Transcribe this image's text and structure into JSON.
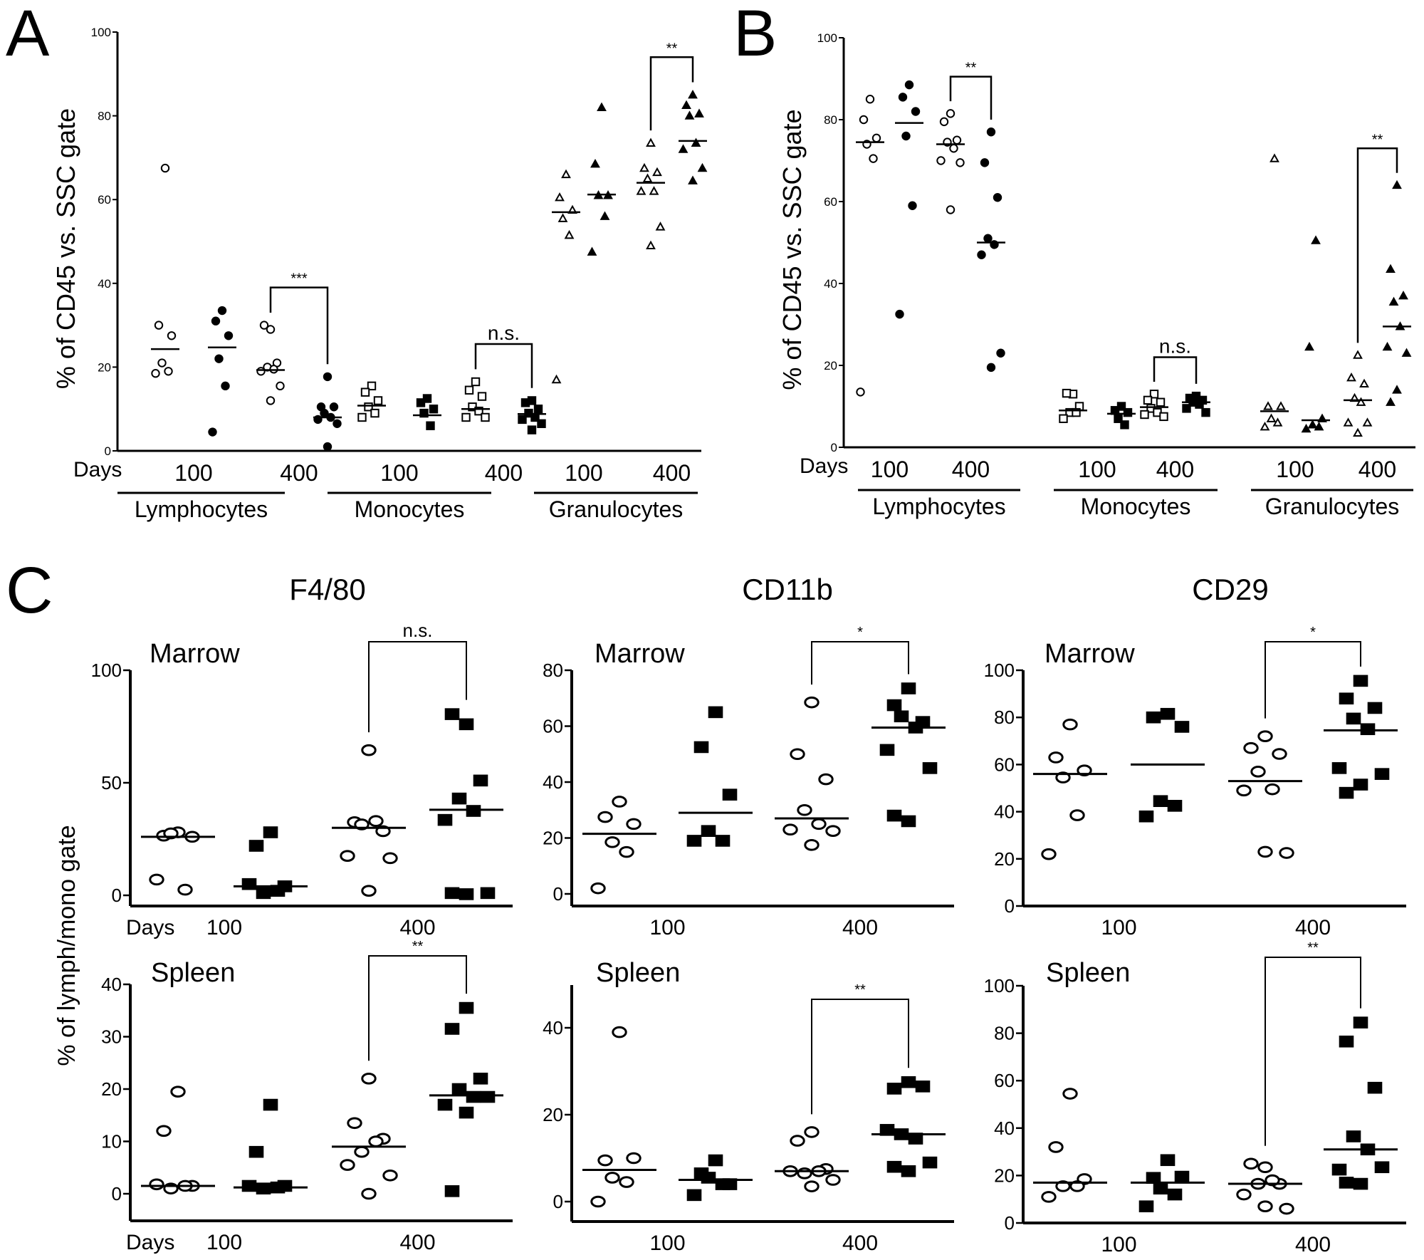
{
  "figure": {
    "panel_labels": [
      "A",
      "B",
      "C"
    ],
    "days_label": "Days"
  },
  "chart_data": [
    {
      "id": "A",
      "type": "scatter",
      "title": "",
      "ylabel": "% of CD45 vs. SSC gate",
      "ylim": [
        0,
        100
      ],
      "yticks": [
        0,
        20,
        40,
        60,
        80,
        100
      ],
      "groups": [
        "Lymphocytes",
        "Monocytes",
        "Granulocytes"
      ],
      "tick_labels": [
        "100",
        "400",
        "100",
        "400",
        "100",
        "400"
      ],
      "series": [
        {
          "group": "Lymphocytes",
          "day": "100",
          "marker": "circle-open",
          "median": 24.3,
          "values": [
            67.5,
            30,
            27.5,
            21,
            19,
            18.5
          ]
        },
        {
          "group": "Lymphocytes",
          "day": "400",
          "marker": "circle-filled",
          "median": 24.7,
          "values": [
            33.5,
            31,
            27.5,
            22,
            15.5,
            4.5
          ]
        },
        {
          "group": "Lymphocytes",
          "day": "100b",
          "marker": "circle-open",
          "median": 19.3,
          "values": [
            29,
            30,
            21,
            20,
            19.5,
            19,
            15.5,
            12
          ]
        },
        {
          "group": "Lymphocytes",
          "day": "400b",
          "marker": "circle-filled",
          "median": 8,
          "values": [
            17.7,
            10.5,
            10.5,
            9,
            8,
            7.5,
            6.5,
            1
          ]
        },
        {
          "group": "Monocytes",
          "day": "100",
          "marker": "square-open",
          "median": 10.8,
          "values": [
            15.5,
            14,
            12,
            10.5,
            9,
            8
          ]
        },
        {
          "group": "Monocytes",
          "day": "400",
          "marker": "square-filled",
          "median": 8.5,
          "values": [
            12.5,
            11.5,
            10,
            9,
            6
          ]
        },
        {
          "group": "Monocytes",
          "day": "100b",
          "marker": "square-open",
          "median": 10,
          "values": [
            16.5,
            14.5,
            13,
            10.5,
            9.5,
            8,
            8
          ]
        },
        {
          "group": "Monocytes",
          "day": "400b",
          "marker": "square-filled",
          "median": 8.8,
          "values": [
            12,
            11.5,
            10,
            9,
            8,
            7.5,
            6.5,
            5
          ]
        },
        {
          "group": "Granulocytes",
          "day": "100",
          "marker": "triangle-open",
          "median": 57,
          "values": [
            66,
            60.5,
            57.5,
            55.5,
            51.5,
            17
          ]
        },
        {
          "group": "Granulocytes",
          "day": "400",
          "marker": "triangle-filled",
          "median": 61.2,
          "values": [
            82,
            68.5,
            61,
            61,
            56,
            47.5
          ]
        },
        {
          "group": "Granulocytes",
          "day": "100b",
          "marker": "triangle-open",
          "median": 64,
          "values": [
            73.5,
            67.5,
            66.5,
            65,
            62,
            62,
            53.5,
            49
          ]
        },
        {
          "group": "Granulocytes",
          "day": "400b",
          "marker": "triangle-filled",
          "median": 74,
          "values": [
            85,
            82.5,
            80.5,
            80,
            73.5,
            72,
            67.5,
            64.5
          ]
        }
      ],
      "comparisons": [
        {
          "between": [
            2,
            3
          ],
          "label": "***"
        },
        {
          "between": [
            6,
            7
          ],
          "label": "n.s."
        },
        {
          "between": [
            10,
            11
          ],
          "label": "**"
        }
      ]
    },
    {
      "id": "B",
      "type": "scatter",
      "title": "",
      "ylabel": "% of CD45 vs. SSC gate",
      "ylim": [
        0,
        100
      ],
      "yticks": [
        0,
        20,
        40,
        60,
        80,
        100
      ],
      "groups": [
        "Lymphocytes",
        "Monocytes",
        "Granulocytes"
      ],
      "tick_labels": [
        "100",
        "400",
        "100",
        "400",
        "100",
        "400"
      ],
      "series": [
        {
          "group": "Lymphocytes",
          "day": "100",
          "marker": "circle-open",
          "median": 74.5,
          "values": [
            85,
            80,
            75.5,
            74,
            70.5,
            13.5
          ]
        },
        {
          "group": "Lymphocytes",
          "day": "400",
          "marker": "circle-filled",
          "median": 79.2,
          "values": [
            88.5,
            85.5,
            82,
            76,
            59,
            32.5
          ]
        },
        {
          "group": "Lymphocytes",
          "day": "100b",
          "marker": "circle-open",
          "median": 74,
          "values": [
            81.5,
            79.5,
            75,
            74.5,
            73,
            70,
            69.5,
            58
          ]
        },
        {
          "group": "Lymphocytes",
          "day": "400b",
          "marker": "circle-filled",
          "median": 50,
          "values": [
            77,
            69.5,
            61,
            51,
            49.5,
            47,
            23,
            19.5
          ]
        },
        {
          "group": "Monocytes",
          "day": "100",
          "marker": "square-open",
          "median": 9,
          "values": [
            13,
            13.2,
            10,
            8.5,
            8.5,
            7
          ]
        },
        {
          "group": "Monocytes",
          "day": "400",
          "marker": "square-filled",
          "median": 8.2,
          "values": [
            10,
            9,
            8.5,
            7,
            5.5
          ]
        },
        {
          "group": "Monocytes",
          "day": "100b",
          "marker": "square-open",
          "median": 9.8,
          "values": [
            13,
            11.5,
            11,
            9.5,
            8.5,
            8,
            7.5
          ]
        },
        {
          "group": "Monocytes",
          "day": "400b",
          "marker": "square-filled",
          "median": 11,
          "values": [
            12.5,
            12,
            11.5,
            11,
            10.5,
            9.5,
            8.5
          ]
        },
        {
          "group": "Granulocytes",
          "day": "100",
          "marker": "triangle-open",
          "median": 8.8,
          "values": [
            70.5,
            10,
            10,
            7,
            6,
            5
          ]
        },
        {
          "group": "Granulocytes",
          "day": "400",
          "marker": "triangle-filled",
          "median": 6.6,
          "values": [
            50.5,
            24.5,
            7,
            5.5,
            5,
            4.5
          ]
        },
        {
          "group": "Granulocytes",
          "day": "100b",
          "marker": "triangle-open",
          "median": 11.5,
          "values": [
            22.5,
            17,
            15.5,
            12,
            11,
            6,
            6,
            3.5
          ]
        },
        {
          "group": "Granulocytes",
          "day": "400b",
          "marker": "triangle-filled",
          "median": 29.5,
          "values": [
            64,
            43.5,
            37,
            35.5,
            29.5,
            24.5,
            23,
            14,
            11
          ]
        }
      ],
      "comparisons": [
        {
          "between": [
            2,
            3
          ],
          "label": "**"
        },
        {
          "between": [
            6,
            7
          ],
          "label": "n.s."
        },
        {
          "between": [
            10,
            11
          ],
          "label": "**"
        }
      ]
    },
    {
      "id": "C-F4/80-Marrow",
      "type": "scatter",
      "title": "F4/80",
      "subtitle": "Marrow",
      "ylabel": "% of lymph/mono gate",
      "ylim": [
        0,
        100
      ],
      "yticks": [
        0,
        50,
        100
      ],
      "xticks": [
        "100",
        "400"
      ],
      "series": [
        {
          "day": "100",
          "marker": "circle-open",
          "median": 26,
          "values": [
            28,
            26.5,
            26,
            27.5,
            2.5,
            7
          ]
        },
        {
          "day": "100",
          "marker": "square-filled",
          "median": 4,
          "values": [
            28,
            22,
            4,
            1,
            2,
            5
          ]
        },
        {
          "day": "400",
          "marker": "circle-open",
          "median": 30,
          "values": [
            64.5,
            32.5,
            28.5,
            31.5,
            33,
            17.5,
            16.5,
            2
          ]
        },
        {
          "day": "400",
          "marker": "square-filled",
          "median": 38,
          "values": [
            76,
            80.5,
            51,
            43,
            37.5,
            33.5,
            1,
            0.5,
            1
          ]
        }
      ],
      "comparisons": [
        {
          "between": [
            2,
            3
          ],
          "label": "n.s."
        }
      ]
    },
    {
      "id": "C-F4/80-Spleen",
      "type": "scatter",
      "subtitle": "Spleen",
      "ylim": [
        -5,
        40
      ],
      "yticks": [
        0,
        10,
        20,
        30,
        40
      ],
      "xticks": [
        "100",
        "400"
      ],
      "series": [
        {
          "day": "100",
          "marker": "circle-open",
          "median": 1.5,
          "values": [
            19.5,
            12,
            1.5,
            1,
            1.5,
            1.8
          ]
        },
        {
          "day": "100",
          "marker": "square-filled",
          "median": 1.2,
          "values": [
            17,
            8,
            1.5,
            1,
            1.2,
            1.5
          ]
        },
        {
          "day": "400",
          "marker": "circle-open",
          "median": 9,
          "values": [
            22,
            13.5,
            10.5,
            8,
            10,
            5.5,
            3.5,
            0
          ]
        },
        {
          "day": "400",
          "marker": "square-filled",
          "median": 18.8,
          "values": [
            35.5,
            31.5,
            22,
            20,
            18.5,
            17,
            18.5,
            15.5,
            0.5
          ]
        }
      ],
      "comparisons": [
        {
          "between": [
            2,
            3
          ],
          "label": "**"
        }
      ]
    },
    {
      "id": "C-CD11b-Marrow",
      "type": "scatter",
      "title": "CD11b",
      "subtitle": "Marrow",
      "ylim": [
        0,
        80
      ],
      "yticks": [
        0,
        20,
        40,
        60,
        80
      ],
      "xticks": [
        "100",
        "400"
      ],
      "series": [
        {
          "day": "100",
          "marker": "circle-open",
          "median": 21.5,
          "values": [
            33,
            27.5,
            25,
            18.5,
            15,
            2
          ]
        },
        {
          "day": "100",
          "marker": "square-filled",
          "median": 29,
          "values": [
            65,
            52.5,
            35.5,
            22.5,
            19,
            19
          ]
        },
        {
          "day": "400",
          "marker": "circle-open",
          "median": 27,
          "values": [
            68.5,
            50,
            41,
            30,
            25,
            23,
            22.5,
            17.5
          ]
        },
        {
          "day": "400",
          "marker": "square-filled",
          "median": 59.5,
          "values": [
            73.5,
            67.5,
            61.5,
            63.5,
            59.5,
            51.5,
            45,
            26,
            28
          ]
        }
      ],
      "comparisons": [
        {
          "between": [
            2,
            3
          ],
          "label": "*"
        }
      ]
    },
    {
      "id": "C-CD11b-Spleen",
      "type": "scatter",
      "subtitle": "Spleen",
      "ylim": [
        -5,
        50
      ],
      "yticks": [
        0,
        20,
        40
      ],
      "xticks": [
        "100",
        "400"
      ],
      "series": [
        {
          "day": "100",
          "marker": "circle-open",
          "median": 7.3,
          "values": [
            39,
            9.5,
            10,
            5.5,
            4.5,
            0
          ]
        },
        {
          "day": "100",
          "marker": "square-filled",
          "median": 5,
          "values": [
            9.5,
            6.5,
            4,
            5.5,
            4,
            1.5
          ]
        },
        {
          "day": "400",
          "marker": "circle-open",
          "median": 7,
          "values": [
            16,
            14,
            7.5,
            6.5,
            7,
            7,
            5,
            3.5
          ]
        },
        {
          "day": "400",
          "marker": "square-filled",
          "median": 15.5,
          "values": [
            27.5,
            26,
            26.5,
            15.5,
            14.5,
            16.5,
            9,
            7,
            8
          ]
        }
      ],
      "comparisons": [
        {
          "between": [
            2,
            3
          ],
          "label": "**"
        }
      ]
    },
    {
      "id": "C-CD29-Marrow",
      "type": "scatter",
      "title": "CD29",
      "subtitle": "Marrow",
      "ylim": [
        0,
        100
      ],
      "yticks": [
        0,
        20,
        40,
        60,
        80,
        100
      ],
      "xticks": [
        "100",
        "400"
      ],
      "series": [
        {
          "day": "100",
          "marker": "circle-open",
          "median": 56,
          "values": [
            77,
            63,
            57.5,
            54.5,
            38.5,
            22
          ]
        },
        {
          "day": "100",
          "marker": "square-filled",
          "median": 60,
          "values": [
            81.5,
            80,
            76,
            44.5,
            42.5,
            38
          ]
        },
        {
          "day": "400",
          "marker": "circle-open",
          "median": 53,
          "values": [
            72,
            67,
            64.5,
            57,
            49.5,
            49,
            22.5,
            23
          ]
        },
        {
          "day": "400",
          "marker": "square-filled",
          "median": 74.5,
          "values": [
            95.5,
            88,
            84,
            79.5,
            75,
            58.5,
            56,
            51.5,
            48
          ]
        }
      ],
      "comparisons": [
        {
          "between": [
            2,
            3
          ],
          "label": "*"
        }
      ]
    },
    {
      "id": "C-CD29-Spleen",
      "type": "scatter",
      "subtitle": "Spleen",
      "ylim": [
        0,
        100
      ],
      "yticks": [
        0,
        20,
        40,
        60,
        80,
        100
      ],
      "xticks": [
        "100",
        "400"
      ],
      "series": [
        {
          "day": "100",
          "marker": "circle-open",
          "median": 17,
          "values": [
            54.5,
            32,
            18.5,
            15.5,
            15.5,
            11
          ]
        },
        {
          "day": "100",
          "marker": "square-filled",
          "median": 17,
          "values": [
            26.5,
            19,
            19.5,
            14.5,
            12,
            7
          ]
        },
        {
          "day": "400",
          "marker": "circle-open",
          "median": 16.5,
          "values": [
            23.5,
            25,
            16.5,
            16.5,
            18,
            12,
            6,
            7
          ]
        },
        {
          "day": "400",
          "marker": "square-filled",
          "median": 31,
          "values": [
            84.5,
            76.5,
            57,
            36.5,
            31,
            22.5,
            23.5,
            16.5,
            17
          ]
        }
      ],
      "comparisons": [
        {
          "between": [
            2,
            3
          ],
          "label": "**"
        }
      ]
    }
  ]
}
